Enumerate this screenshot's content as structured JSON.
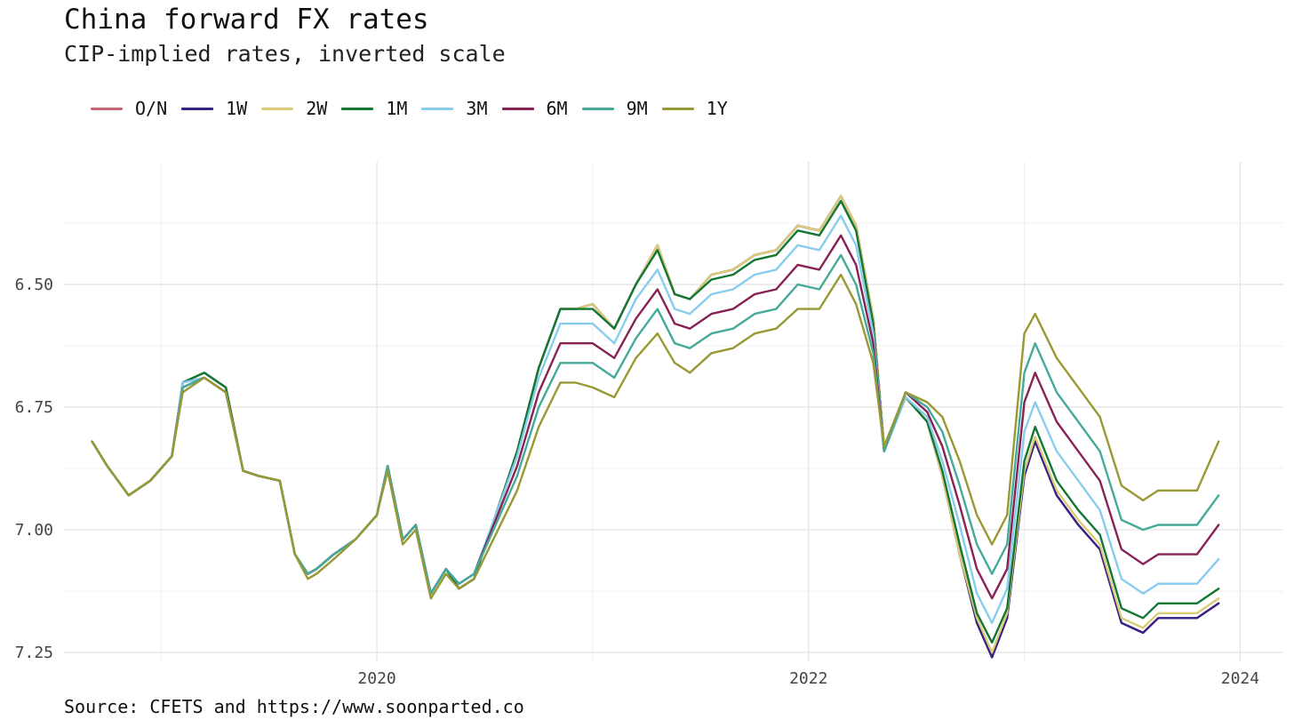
{
  "title": "China forward FX rates",
  "subtitle": "CIP-implied rates, inverted scale",
  "source": "Source: CFETS and https://www.soonparted.co",
  "chart_data": {
    "type": "line",
    "title": "China forward FX rates",
    "subtitle": "CIP-implied rates, inverted scale",
    "xlabel": "",
    "ylabel": "",
    "y_inverted": true,
    "ylim": [
      7.27,
      6.25
    ],
    "xlim": [
      2018.55,
      2024.2
    ],
    "grid": true,
    "legend_position": "top-left",
    "y_ticks": [
      6.5,
      6.75,
      7.0,
      7.25
    ],
    "y_tick_labels": [
      "6.50",
      "6.75",
      "7.00",
      "7.25"
    ],
    "x_ticks": [
      2020,
      2022,
      2024
    ],
    "x_tick_labels": [
      "2020",
      "2022",
      "2024"
    ],
    "x": [
      2018.68,
      2018.75,
      2018.85,
      2018.95,
      2019.05,
      2019.1,
      2019.2,
      2019.3,
      2019.38,
      2019.45,
      2019.55,
      2019.62,
      2019.68,
      2019.72,
      2019.8,
      2019.9,
      2020.0,
      2020.05,
      2020.12,
      2020.18,
      2020.25,
      2020.32,
      2020.38,
      2020.45,
      2020.55,
      2020.65,
      2020.75,
      2020.85,
      2020.92,
      2021.0,
      2021.1,
      2021.2,
      2021.3,
      2021.38,
      2021.45,
      2021.55,
      2021.65,
      2021.75,
      2021.85,
      2021.95,
      2022.05,
      2022.15,
      2022.22,
      2022.3,
      2022.35,
      2022.45,
      2022.55,
      2022.62,
      2022.7,
      2022.78,
      2022.85,
      2022.92,
      2023.0,
      2023.05,
      2023.15,
      2023.25,
      2023.35,
      2023.45,
      2023.55,
      2023.62,
      2023.7,
      2023.8,
      2023.9
    ],
    "series": [
      {
        "name": "O/N",
        "color": "#cc6677",
        "values": [
          6.82,
          6.87,
          6.93,
          6.9,
          6.85,
          6.7,
          6.68,
          6.71,
          6.88,
          6.89,
          6.9,
          7.05,
          7.09,
          7.08,
          7.05,
          7.02,
          6.97,
          6.87,
          7.02,
          6.99,
          7.13,
          7.08,
          7.12,
          7.1,
          6.97,
          6.84,
          6.67,
          6.55,
          6.55,
          6.54,
          6.59,
          6.5,
          6.42,
          6.52,
          6.53,
          6.48,
          6.47,
          6.44,
          6.43,
          6.38,
          6.39,
          6.32,
          6.38,
          6.57,
          6.83,
          6.73,
          6.78,
          6.89,
          7.05,
          7.19,
          7.26,
          7.18,
          6.89,
          6.82,
          6.93,
          6.99,
          7.04,
          7.19,
          7.21,
          7.18,
          7.18,
          7.18,
          7.15
        ]
      },
      {
        "name": "1W",
        "color": "#332288",
        "values": [
          6.82,
          6.87,
          6.93,
          6.9,
          6.85,
          6.7,
          6.68,
          6.71,
          6.88,
          6.89,
          6.9,
          7.05,
          7.09,
          7.08,
          7.05,
          7.02,
          6.97,
          6.87,
          7.02,
          6.99,
          7.13,
          7.08,
          7.12,
          7.1,
          6.97,
          6.84,
          6.67,
          6.55,
          6.55,
          6.54,
          6.59,
          6.5,
          6.42,
          6.52,
          6.53,
          6.48,
          6.47,
          6.44,
          6.43,
          6.38,
          6.39,
          6.32,
          6.38,
          6.57,
          6.83,
          6.73,
          6.78,
          6.89,
          7.05,
          7.19,
          7.26,
          7.18,
          6.89,
          6.82,
          6.93,
          6.99,
          7.04,
          7.19,
          7.21,
          7.18,
          7.18,
          7.18,
          7.15
        ]
      },
      {
        "name": "2W",
        "color": "#ddcc77",
        "values": [
          6.82,
          6.87,
          6.93,
          6.9,
          6.85,
          6.7,
          6.68,
          6.71,
          6.88,
          6.89,
          6.9,
          7.05,
          7.09,
          7.08,
          7.05,
          7.02,
          6.97,
          6.87,
          7.02,
          6.99,
          7.13,
          7.08,
          7.12,
          7.1,
          6.97,
          6.84,
          6.67,
          6.55,
          6.55,
          6.54,
          6.59,
          6.5,
          6.42,
          6.52,
          6.53,
          6.48,
          6.47,
          6.44,
          6.43,
          6.38,
          6.39,
          6.32,
          6.38,
          6.57,
          6.83,
          6.73,
          6.78,
          6.89,
          7.05,
          7.18,
          7.25,
          7.17,
          6.88,
          6.81,
          6.92,
          6.98,
          7.03,
          7.18,
          7.2,
          7.17,
          7.17,
          7.17,
          7.14
        ]
      },
      {
        "name": "1M",
        "color": "#117733",
        "values": [
          6.82,
          6.87,
          6.93,
          6.9,
          6.85,
          6.7,
          6.68,
          6.71,
          6.88,
          6.89,
          6.9,
          7.05,
          7.09,
          7.08,
          7.05,
          7.02,
          6.97,
          6.87,
          7.02,
          6.99,
          7.13,
          7.08,
          7.12,
          7.1,
          6.97,
          6.84,
          6.67,
          6.55,
          6.55,
          6.55,
          6.59,
          6.5,
          6.43,
          6.52,
          6.53,
          6.49,
          6.48,
          6.45,
          6.44,
          6.39,
          6.4,
          6.33,
          6.39,
          6.58,
          6.84,
          6.73,
          6.78,
          6.88,
          7.03,
          7.17,
          7.23,
          7.16,
          6.86,
          6.79,
          6.9,
          6.96,
          7.01,
          7.16,
          7.18,
          7.15,
          7.15,
          7.15,
          7.12
        ]
      },
      {
        "name": "3M",
        "color": "#88ccee",
        "values": [
          6.82,
          6.87,
          6.93,
          6.9,
          6.85,
          6.7,
          6.69,
          6.72,
          6.88,
          6.89,
          6.9,
          7.05,
          7.09,
          7.08,
          7.05,
          7.02,
          6.97,
          6.87,
          7.02,
          6.99,
          7.13,
          7.08,
          7.11,
          7.09,
          6.97,
          6.85,
          6.69,
          6.58,
          6.58,
          6.58,
          6.62,
          6.53,
          6.47,
          6.55,
          6.56,
          6.52,
          6.51,
          6.48,
          6.47,
          6.42,
          6.43,
          6.36,
          6.42,
          6.6,
          6.84,
          6.73,
          6.77,
          6.86,
          6.99,
          7.13,
          7.19,
          7.12,
          6.8,
          6.74,
          6.84,
          6.9,
          6.96,
          7.1,
          7.13,
          7.11,
          7.11,
          7.11,
          7.06
        ]
      },
      {
        "name": "6M",
        "color": "#882255",
        "values": [
          6.82,
          6.87,
          6.93,
          6.9,
          6.85,
          6.71,
          6.69,
          6.72,
          6.88,
          6.89,
          6.9,
          7.05,
          7.09,
          7.08,
          7.05,
          7.02,
          6.97,
          6.87,
          7.02,
          6.99,
          7.13,
          7.08,
          7.11,
          7.09,
          6.98,
          6.87,
          6.72,
          6.62,
          6.62,
          6.62,
          6.65,
          6.57,
          6.51,
          6.58,
          6.59,
          6.56,
          6.55,
          6.52,
          6.51,
          6.46,
          6.47,
          6.4,
          6.46,
          6.62,
          6.84,
          6.72,
          6.76,
          6.83,
          6.95,
          7.08,
          7.14,
          7.08,
          6.74,
          6.68,
          6.78,
          6.84,
          6.9,
          7.04,
          7.07,
          7.05,
          7.05,
          7.05,
          6.99
        ]
      },
      {
        "name": "9M",
        "color": "#44aa99",
        "values": [
          6.82,
          6.87,
          6.93,
          6.9,
          6.85,
          6.71,
          6.69,
          6.72,
          6.88,
          6.89,
          6.9,
          7.05,
          7.09,
          7.08,
          7.05,
          7.02,
          6.97,
          6.87,
          7.02,
          6.99,
          7.13,
          7.08,
          7.11,
          7.09,
          6.99,
          6.89,
          6.75,
          6.66,
          6.66,
          6.66,
          6.69,
          6.61,
          6.55,
          6.62,
          6.63,
          6.6,
          6.59,
          6.56,
          6.55,
          6.5,
          6.51,
          6.44,
          6.5,
          6.64,
          6.84,
          6.72,
          6.75,
          6.8,
          6.91,
          7.03,
          7.09,
          7.03,
          6.68,
          6.62,
          6.72,
          6.78,
          6.84,
          6.98,
          7.0,
          6.99,
          6.99,
          6.99,
          6.93
        ]
      },
      {
        "name": "1Y",
        "color": "#999933",
        "values": [
          6.82,
          6.87,
          6.93,
          6.9,
          6.85,
          6.72,
          6.69,
          6.72,
          6.88,
          6.89,
          6.9,
          7.05,
          7.1,
          7.09,
          7.06,
          7.02,
          6.97,
          6.88,
          7.03,
          7.0,
          7.14,
          7.09,
          7.12,
          7.1,
          7.01,
          6.92,
          6.79,
          6.7,
          6.7,
          6.71,
          6.73,
          6.65,
          6.6,
          6.66,
          6.68,
          6.64,
          6.63,
          6.6,
          6.59,
          6.55,
          6.55,
          6.48,
          6.54,
          6.66,
          6.83,
          6.72,
          6.74,
          6.77,
          6.86,
          6.97,
          7.03,
          6.97,
          6.6,
          6.56,
          6.65,
          6.71,
          6.77,
          6.91,
          6.94,
          6.92,
          6.92,
          6.92,
          6.82
        ]
      }
    ]
  }
}
